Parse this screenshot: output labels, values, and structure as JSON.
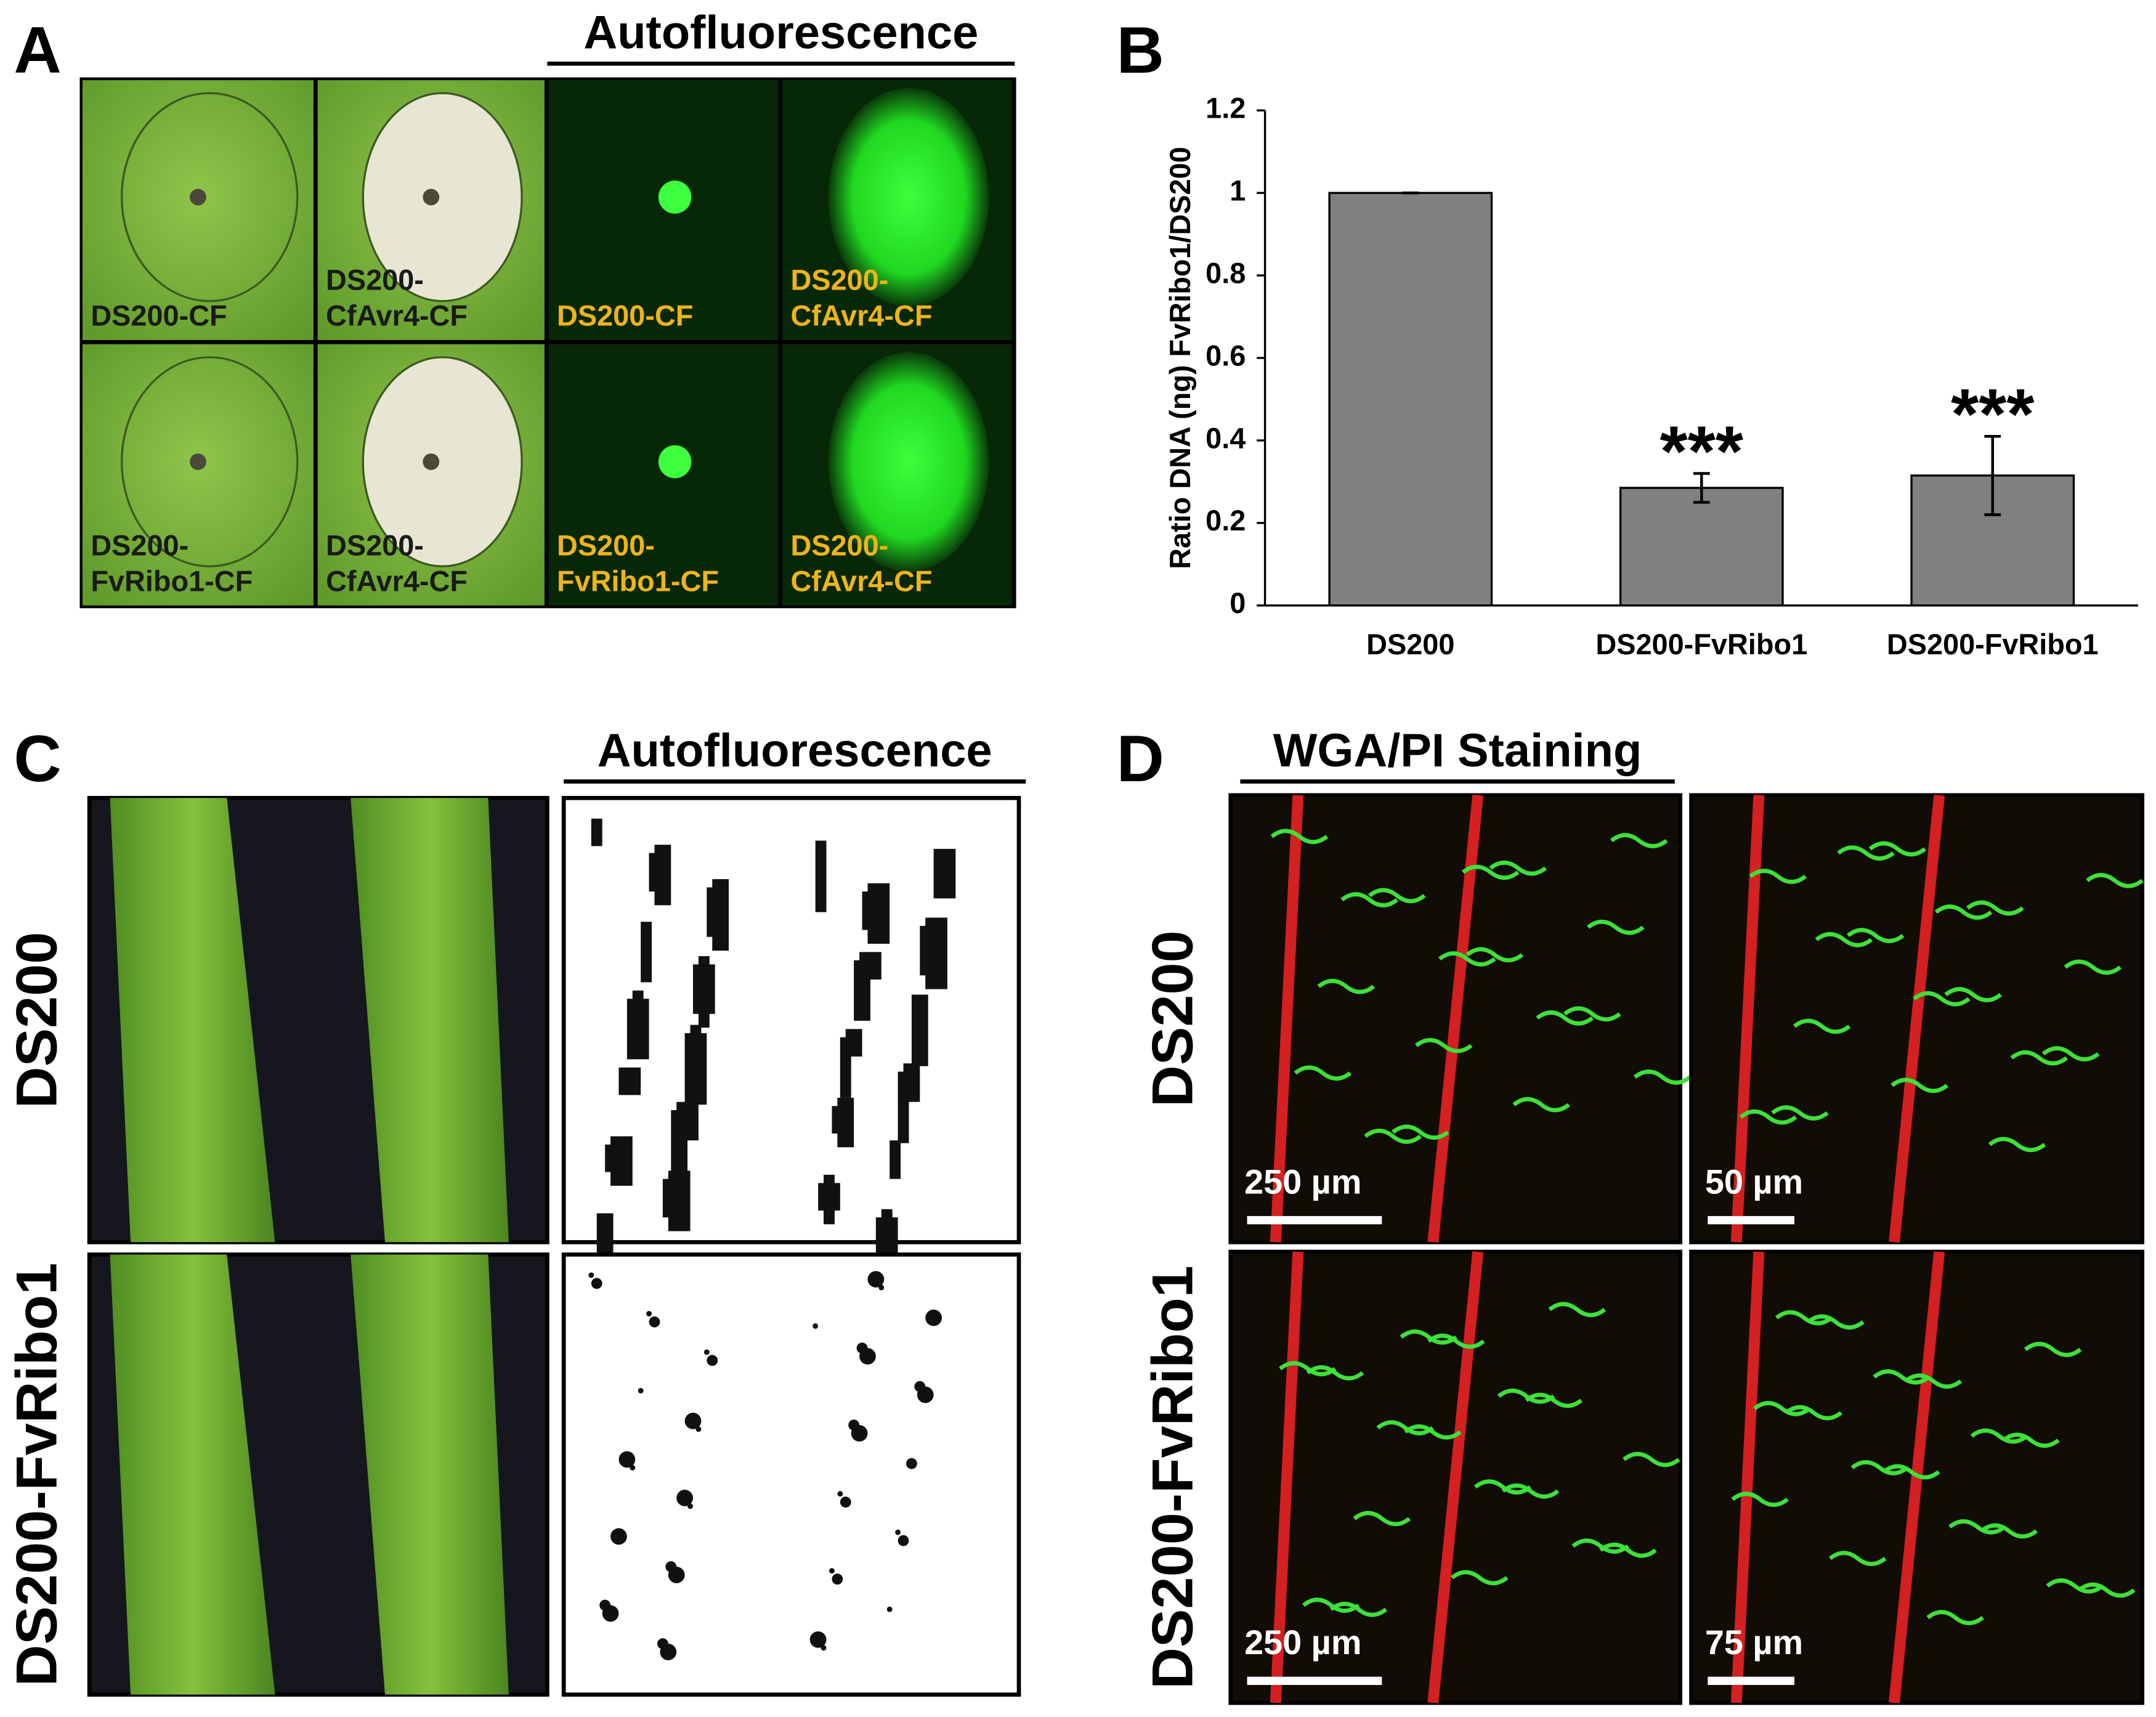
{
  "panel_a": {
    "label": "A",
    "heading": "Autofluorescence",
    "images": [
      [
        "DS200-CF"
      ],
      [
        "DS200-",
        "CfAvr4-CF"
      ],
      [
        "DS200-CF"
      ],
      [
        "DS200-",
        "CfAvr4-CF"
      ],
      [
        "DS200-",
        "FvRibo1-CF"
      ],
      [
        "DS200-",
        "CfAvr4-CF"
      ],
      [
        "DS200-",
        "FvRibo1-CF"
      ],
      [
        "DS200-",
        "CfAvr4-CF"
      ]
    ]
  },
  "chart_data": {
    "type": "bar",
    "panel_label": "B",
    "y_label": "Ratio DNA (ng) FvRibo1/DS200",
    "categories": [
      "DS200",
      "DS200-FvRibo1",
      "DS200-FvRibo1"
    ],
    "values": [
      1,
      0.285,
      0.315
    ],
    "errors": [
      0,
      0.035,
      0.095
    ],
    "annotations": [
      null,
      "***",
      "***"
    ],
    "color": "#808080",
    "ylim": [
      0,
      1.2
    ],
    "yticks": [
      0,
      0.2,
      0.4,
      0.6,
      0.8,
      1,
      1.2
    ]
  },
  "panel_c": {
    "label": "C",
    "heading": "Autofluorescence",
    "rows": [
      "DS200",
      "DS200-FvRibo1"
    ]
  },
  "panel_d": {
    "label": "D",
    "heading": "WGA/PI Staining",
    "rows": [
      "DS200",
      "DS200-FvRibo1"
    ],
    "scale_bars": [
      "250 µm",
      "50 µm",
      "250 µm",
      "75 µm"
    ]
  }
}
